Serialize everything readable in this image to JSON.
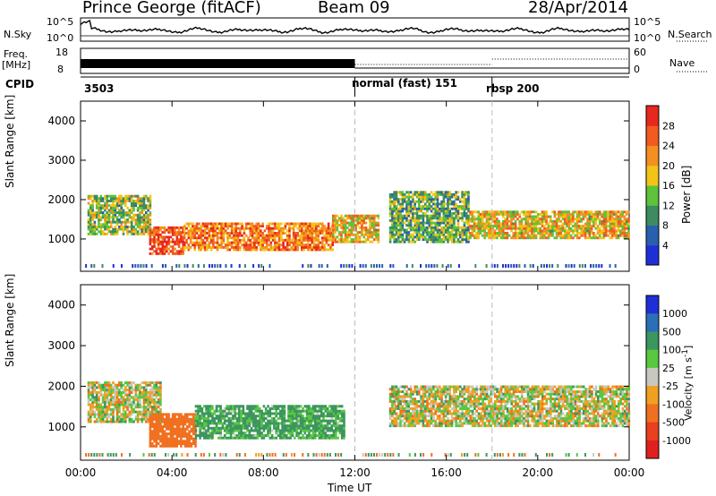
{
  "header": {
    "station": "Prince George (fitACF)",
    "beam": "Beam 09",
    "date": "28/Apr/2014"
  },
  "summary": {
    "nsky_label": "N.Sky",
    "nsky_ticks": [
      "10^5",
      "10^0"
    ],
    "nsearch_label": "N.Search",
    "nsearch_ticks": [
      "10^5",
      "10^0"
    ],
    "freq_label": "Freq.",
    "freq_unit": "[MHz]",
    "freq_ticks": [
      "18",
      "8"
    ],
    "nave_label": "Nave",
    "nave_ticks": [
      "60",
      "0"
    ],
    "cpid_label": "CPID",
    "cpid_segments": [
      {
        "label": "3503",
        "start_hr": 0
      },
      {
        "label": "normal (fast) 151",
        "start_hr": 12
      },
      {
        "label": "rbsp 200",
        "start_hr": 18
      }
    ]
  },
  "axes": {
    "ylabel": "Slant Range [km]",
    "xlabel": "Time UT",
    "xticks": [
      "00:00",
      "04:00",
      "08:00",
      "12:00",
      "16:00",
      "20:00",
      "00:00"
    ],
    "yticks": [
      "1000",
      "2000",
      "3000",
      "4000"
    ]
  },
  "power_colorbar": {
    "label": "Power [dB]",
    "ticks": [
      "4",
      "8",
      "12",
      "16",
      "20",
      "24",
      "28"
    ],
    "colors": [
      "#1f2fd8",
      "#2a5fb0",
      "#3d8b5e",
      "#5ec23a",
      "#f2c418",
      "#f49020",
      "#f25a20",
      "#e8281e"
    ]
  },
  "velocity_colorbar": {
    "label": "Velocity [m s",
    "label_sup": "-1",
    "label_end": "]",
    "ticks": [
      "1000",
      "500",
      "100",
      "25",
      "-25",
      "-100",
      "-500",
      "-1000"
    ],
    "colors": [
      "#1f2fd8",
      "#2a6fb8",
      "#3d9560",
      "#58c840",
      "#c8c8c0",
      "#f0a020",
      "#f07020",
      "#e84020",
      "#e0201e"
    ]
  },
  "chart_data": [
    {
      "type": "heatmap",
      "title": "Power",
      "xlabel": "Time UT",
      "ylabel": "Slant Range [km]",
      "xlim": [
        0,
        24
      ],
      "ylim": [
        180,
        4500
      ],
      "clim": [
        0,
        30
      ],
      "regions": [
        {
          "t0": 0.3,
          "t1": 3.0,
          "r0": 1100,
          "r1": 2100,
          "level": 14
        },
        {
          "t0": 3.0,
          "t1": 4.5,
          "r0": 600,
          "r1": 1300,
          "level": 26
        },
        {
          "t0": 4.5,
          "t1": 11.0,
          "r0": 700,
          "r1": 1400,
          "level": 22
        },
        {
          "t0": 11.0,
          "t1": 13.0,
          "r0": 900,
          "r1": 1600,
          "level": 18
        },
        {
          "t0": 13.5,
          "t1": 17.0,
          "r0": 900,
          "r1": 2200,
          "level": 12
        },
        {
          "t0": 17.0,
          "t1": 24.0,
          "r0": 1000,
          "r1": 1700,
          "level": 18
        }
      ]
    },
    {
      "type": "heatmap",
      "title": "Velocity",
      "xlabel": "Time UT",
      "ylabel": "Slant Range [km]",
      "xlim": [
        0,
        24
      ],
      "ylim": [
        180,
        4500
      ],
      "clim": [
        -1000,
        1000
      ],
      "regions": [
        {
          "t0": 0.3,
          "t1": 3.5,
          "r0": 1100,
          "r1": 2100,
          "level": 0
        },
        {
          "t0": 3.0,
          "t1": 5.0,
          "r0": 500,
          "r1": 1300,
          "level": -300
        },
        {
          "t0": 5.0,
          "t1": 11.5,
          "r0": 700,
          "r1": 1500,
          "level": 150
        },
        {
          "t0": 13.5,
          "t1": 24.0,
          "r0": 1000,
          "r1": 2000,
          "level": 0
        }
      ]
    }
  ]
}
